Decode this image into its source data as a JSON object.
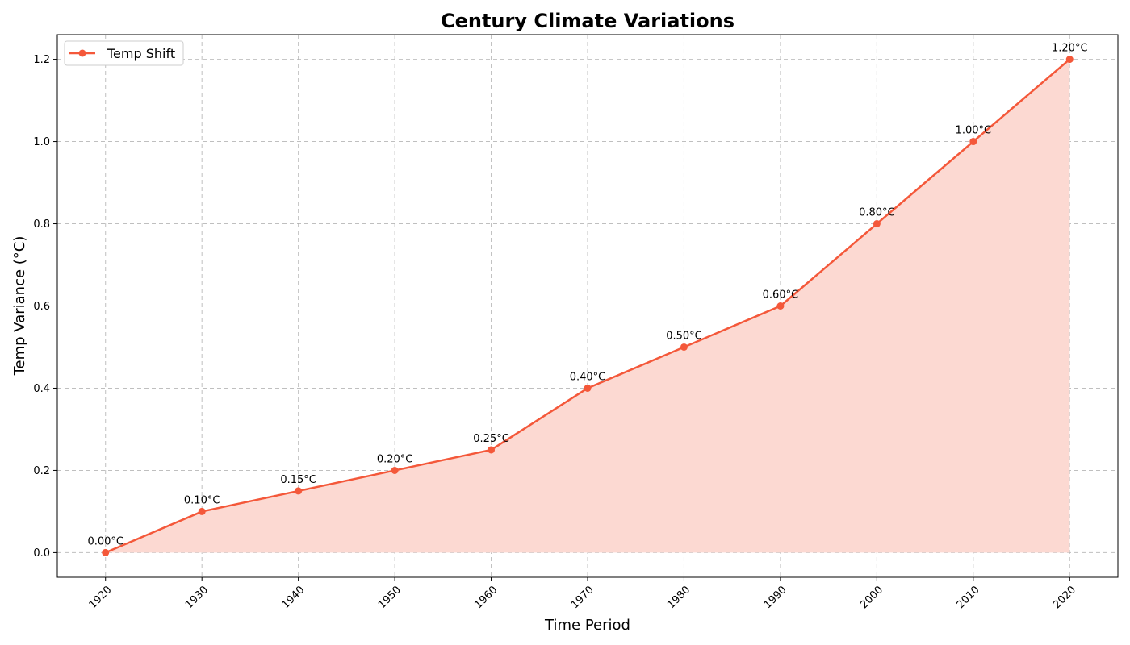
{
  "chart_data": {
    "type": "line",
    "title": "Century Climate Variations",
    "xlabel": "Time Period",
    "ylabel": "Temp Variance (°C)",
    "x": [
      1920,
      1930,
      1940,
      1950,
      1960,
      1970,
      1980,
      1990,
      2000,
      2010,
      2020
    ],
    "x_tick_labels": [
      "1920",
      "1930",
      "1940",
      "1950",
      "1960",
      "1970",
      "1980",
      "1990",
      "2000",
      "2010",
      "2020"
    ],
    "y_ticks": [
      0.0,
      0.2,
      0.4,
      0.6,
      0.8,
      1.0,
      1.2
    ],
    "y_tick_labels": [
      "0.0",
      "0.2",
      "0.4",
      "0.6",
      "0.8",
      "1.0",
      "1.2"
    ],
    "xlim": [
      1915,
      2025
    ],
    "ylim": [
      -0.06,
      1.26
    ],
    "grid": true,
    "legend_position": "top-left",
    "fill_under_line": true,
    "series": [
      {
        "name": "Temp Shift",
        "color": "#f4583a",
        "fill_color": "#fcd9d2",
        "values": [
          0.0,
          0.1,
          0.15,
          0.2,
          0.25,
          0.4,
          0.5,
          0.6,
          0.8,
          1.0,
          1.2
        ],
        "data_labels": [
          "0.00°C",
          "0.10°C",
          "0.15°C",
          "0.20°C",
          "0.25°C",
          "0.40°C",
          "0.50°C",
          "0.60°C",
          "0.80°C",
          "1.00°C",
          "1.20°C"
        ]
      }
    ]
  }
}
